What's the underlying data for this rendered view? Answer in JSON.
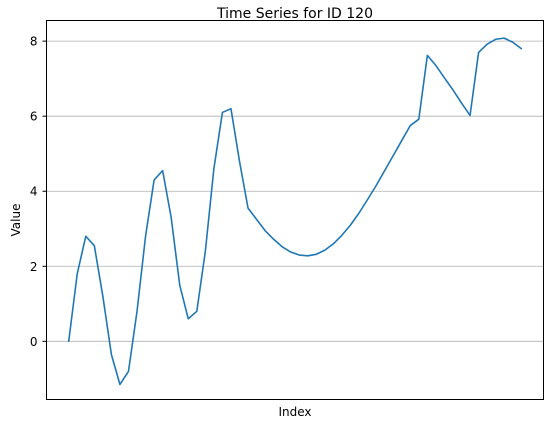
{
  "chart_data": {
    "type": "line",
    "title": "Time Series for ID 120",
    "xlabel": "Index",
    "ylabel": "Value",
    "ylim": [
      -1.55,
      8.55
    ],
    "xlim": [
      -2.6,
      55.6
    ],
    "yticks": [
      0,
      2,
      4,
      6,
      8
    ],
    "ytick_labels": [
      "0",
      "2",
      "4",
      "6",
      "8"
    ],
    "xticks_visible": false,
    "grid": {
      "y": true,
      "x": false
    },
    "colors": {
      "line": "#1f77b4",
      "grid": "#b0b0b0",
      "axis": "#000000"
    },
    "series": [
      {
        "x": [
          0,
          1,
          2,
          3,
          4,
          5,
          6,
          7,
          8,
          9,
          10,
          11,
          12,
          13,
          14,
          15,
          16,
          17,
          18,
          19,
          20,
          21,
          22,
          23,
          24,
          25,
          26,
          27,
          28,
          29,
          30,
          31,
          32,
          33,
          34,
          35,
          36,
          37,
          38,
          39,
          40,
          41,
          42,
          43,
          44,
          45,
          46,
          47,
          48,
          49,
          50,
          51,
          52,
          53
        ],
        "values": [
          0.0,
          1.8,
          2.8,
          2.55,
          1.2,
          -0.35,
          -1.15,
          -0.8,
          0.8,
          2.8,
          4.3,
          4.55,
          3.3,
          1.5,
          0.6,
          0.8,
          2.4,
          4.6,
          6.1,
          6.2,
          4.8,
          3.55,
          3.25,
          2.95,
          2.72,
          2.52,
          2.38,
          2.3,
          2.28,
          2.32,
          2.43,
          2.6,
          2.83,
          3.1,
          3.42,
          3.78,
          4.15,
          4.55,
          4.95,
          5.35,
          5.75,
          5.92,
          7.62,
          7.35,
          7.02,
          6.7,
          6.35,
          6.02,
          7.7,
          7.92,
          8.05,
          8.08,
          7.97,
          7.8
        ]
      }
    ]
  }
}
